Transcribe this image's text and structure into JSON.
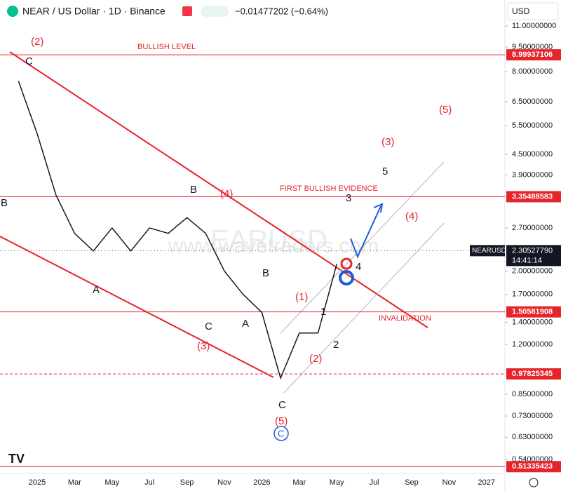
{
  "header": {
    "symbol": "NEAR / US Dollar · 1D · Binance",
    "change": "−0.01477202 (−0.64%)",
    "currency": "USD"
  },
  "price_axis": {
    "scale": "log",
    "ticks": [
      {
        "value": 11,
        "label": "11.00000000"
      },
      {
        "value": 9.5,
        "label": "9.50000000"
      },
      {
        "value": 8,
        "label": "8.00000000"
      },
      {
        "value": 6.5,
        "label": "6.50000000"
      },
      {
        "value": 5.5,
        "label": "5.50000000"
      },
      {
        "value": 4.5,
        "label": "4.50000000"
      },
      {
        "value": 3.9,
        "label": "3.90000000"
      },
      {
        "value": 2.7,
        "label": "2.70000000"
      },
      {
        "value": 2,
        "label": "2.00000000"
      },
      {
        "value": 1.7,
        "label": "1.70000000"
      },
      {
        "value": 1.4,
        "label": "1.40000000"
      },
      {
        "value": 1.2,
        "label": "1.20000000"
      },
      {
        "value": 0.85,
        "label": "0.85000000"
      },
      {
        "value": 0.73,
        "label": "0.73000000"
      },
      {
        "value": 0.63,
        "label": "0.63000000"
      },
      {
        "value": 0.54,
        "label": "0.54000000"
      }
    ]
  },
  "levels": [
    {
      "value": 8.99937106,
      "label": "8.99937106",
      "style": "solid"
    },
    {
      "value": 3.35488583,
      "label": "3.35488583",
      "style": "solid"
    },
    {
      "value": 1.50581908,
      "label": "1.50581908",
      "style": "solid"
    },
    {
      "value": 0.97825345,
      "label": "0.97825345",
      "style": "dashed"
    },
    {
      "value": 0.51335423,
      "label": "0.51335423",
      "style": "solid"
    }
  ],
  "current": {
    "value": 2.3052779,
    "label": "2.30527790",
    "symbol": "NEARUSD",
    "countdown": "14:41:14"
  },
  "time_axis": [
    "2025",
    "Mar",
    "May",
    "Jul",
    "Sep",
    "Nov",
    "2026",
    "Mar",
    "May",
    "Jul",
    "Sep",
    "Nov",
    "2027"
  ],
  "price_series": {
    "x": [
      "2024-12",
      "2025-01",
      "2025-02",
      "2025-03",
      "2025-04",
      "2025-05",
      "2025-06",
      "2025-07",
      "2025-08",
      "2025-09",
      "2025-10",
      "2025-11",
      "2025-12",
      "2026-01",
      "2026-02",
      "2026-03",
      "2026-04",
      "2026-05"
    ],
    "values": [
      7.5,
      5.2,
      3.4,
      2.6,
      2.3,
      2.7,
      2.3,
      2.7,
      2.6,
      2.9,
      2.6,
      2.0,
      1.7,
      1.5,
      0.95,
      1.3,
      1.3,
      2.1
    ]
  },
  "annotations": [
    "(2)",
    "C",
    "B",
    "BULLISH LEVEL",
    "A",
    "B",
    "(4)",
    "C",
    "(3)",
    "A",
    "B",
    "(1)",
    "1",
    "(2)",
    "2",
    "C",
    "(5)",
    "C",
    "3",
    "4",
    "FIRST BULLISH EVIDENCE",
    "INVALIDATION",
    "5",
    "(3)",
    "(4)",
    "(5)",
    "EARUSD",
    "www.wavetraders.com"
  ]
}
